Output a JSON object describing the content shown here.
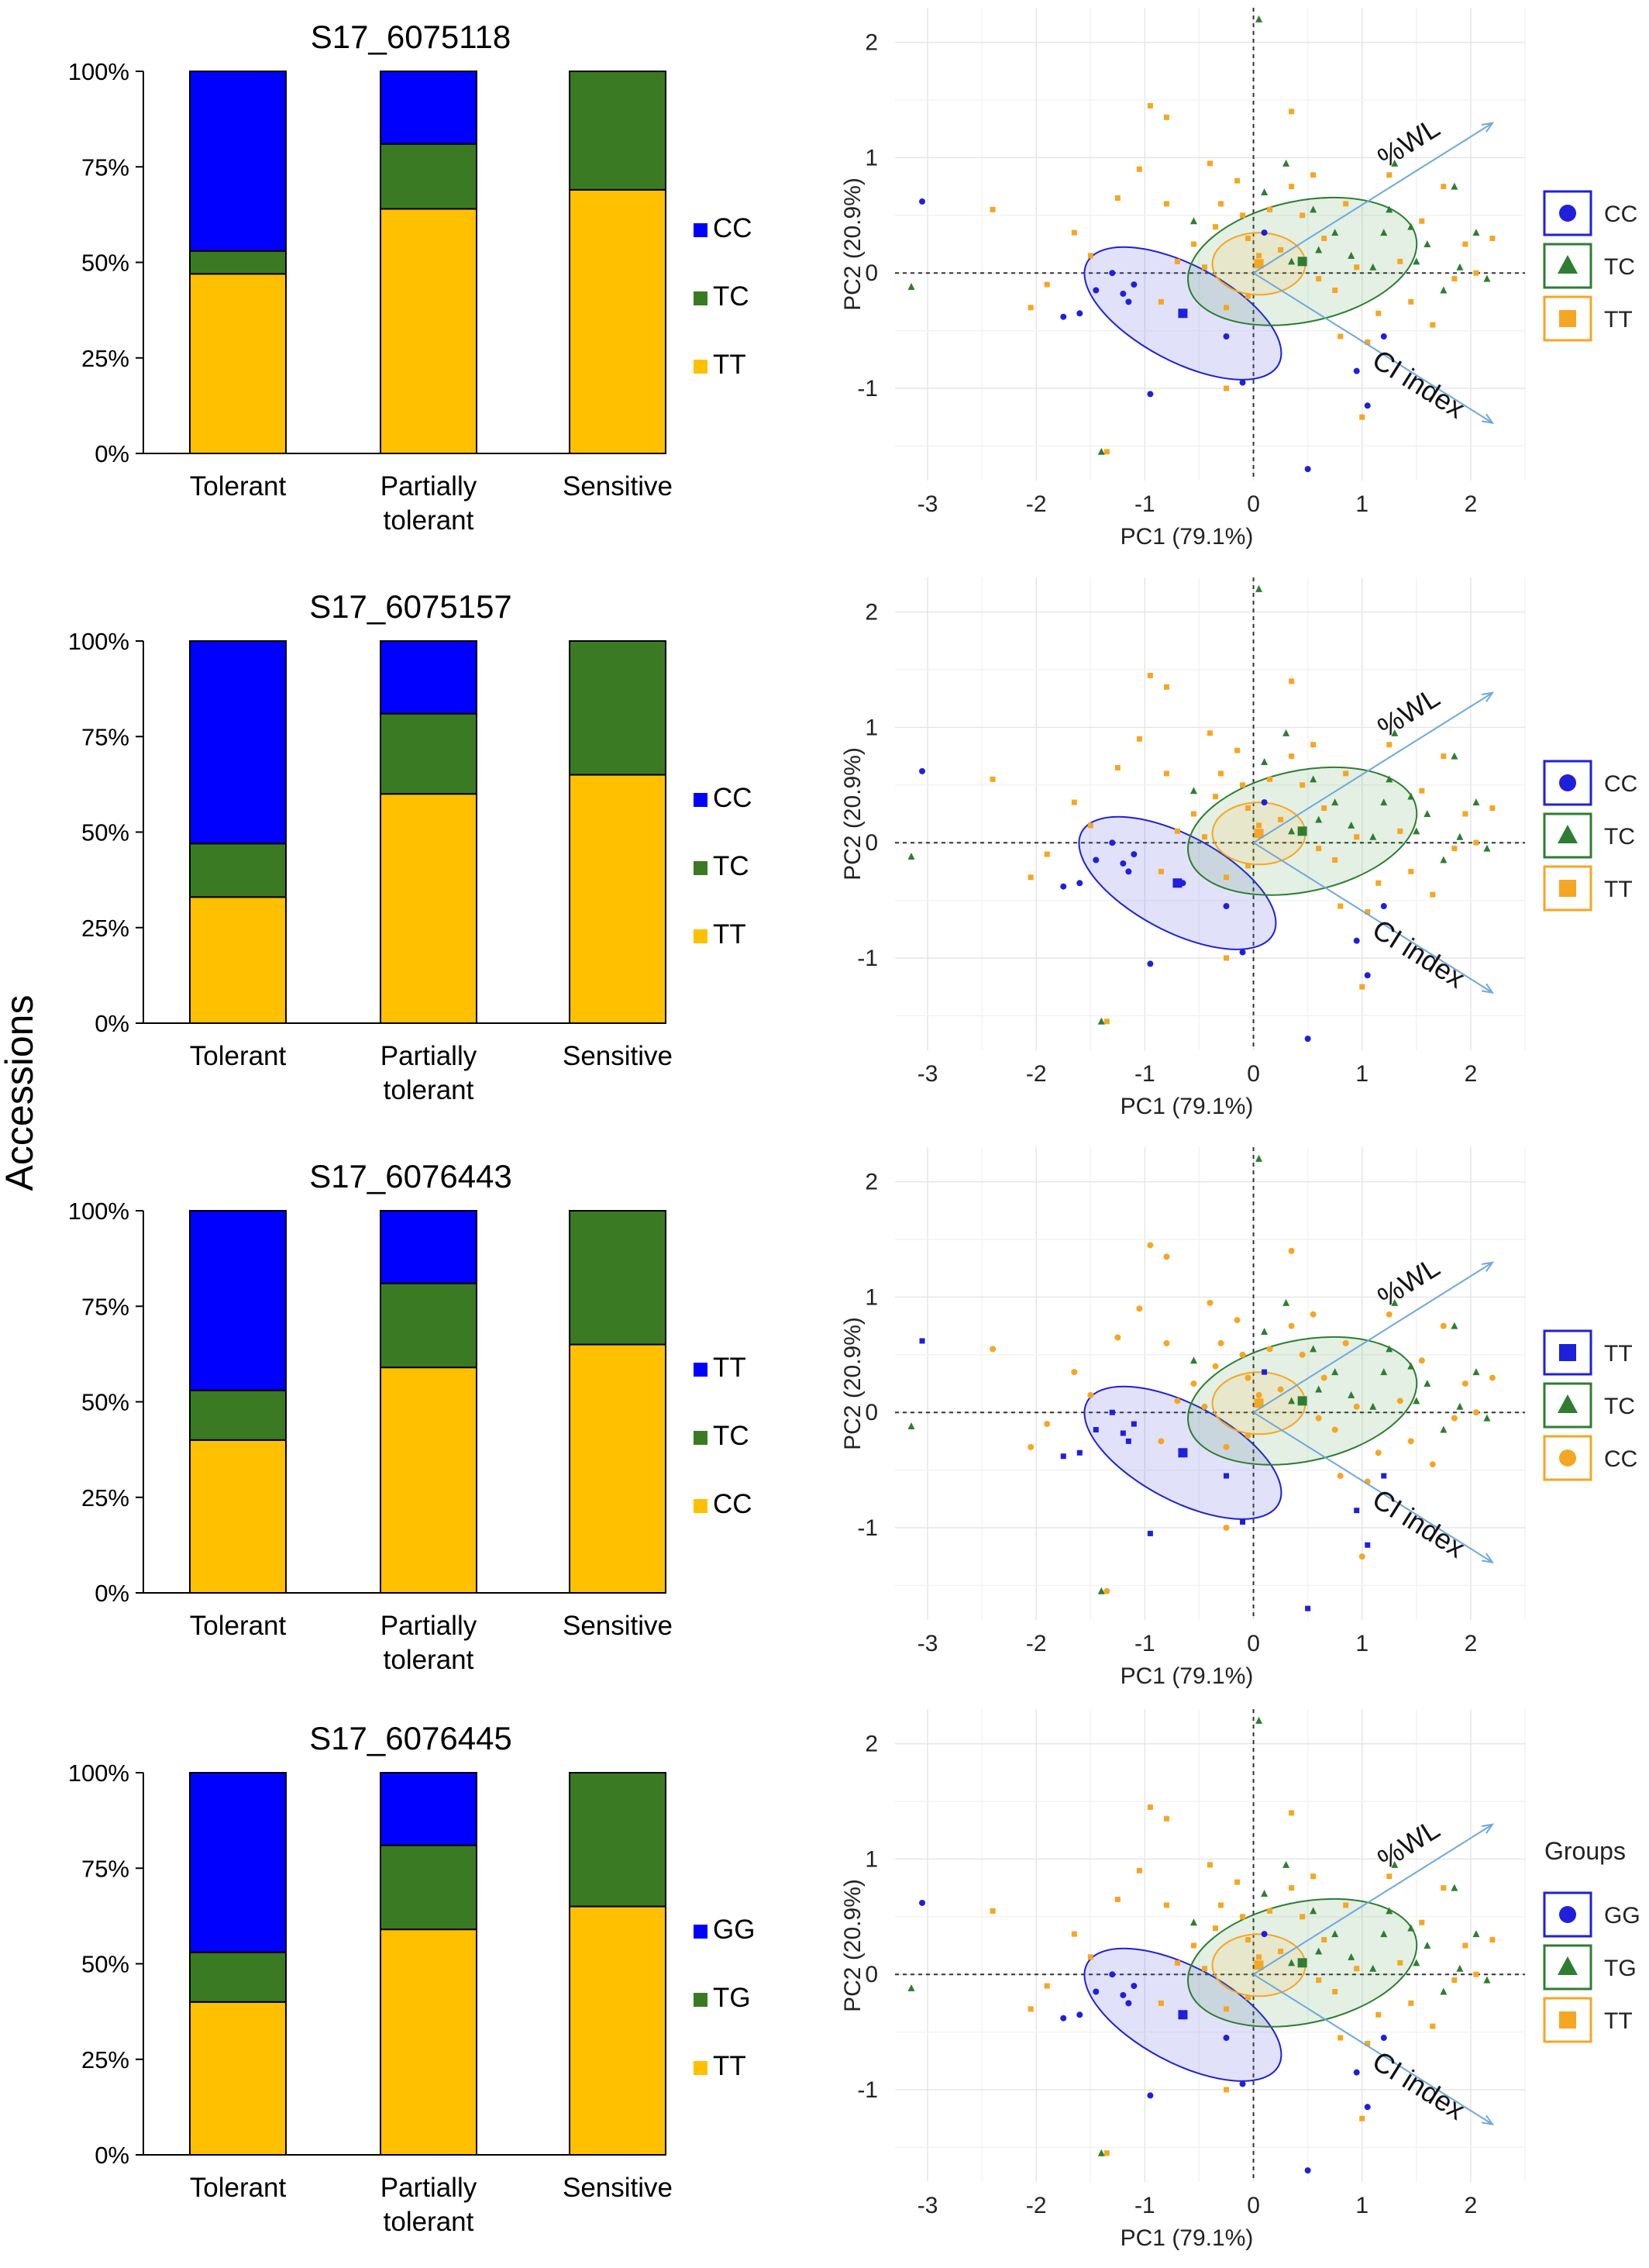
{
  "figure": {
    "ylabel": "Accessions"
  },
  "colors": {
    "blue": "#0000ff",
    "green": "#3a7a23",
    "orange": "#ffc000",
    "pca_blue": "#1f1fdc",
    "pca_green": "#2e7d32",
    "pca_orange": "#f5a623",
    "arrow": "#6fa8dc"
  },
  "chart_data": [
    {
      "type": "bar",
      "stacked": true,
      "title": "S17_6075118",
      "categories": [
        "Tolerant",
        "Partially tolerant",
        "Sensitive"
      ],
      "series": [
        {
          "name": "TT",
          "color": "orange",
          "values": [
            47,
            64,
            69
          ]
        },
        {
          "name": "TC",
          "color": "green",
          "values": [
            6,
            17,
            31
          ]
        },
        {
          "name": "CC",
          "color": "blue",
          "values": [
            47,
            19,
            0
          ]
        }
      ],
      "ylim": [
        0,
        100
      ],
      "yticks": [
        "0%",
        "25%",
        "50%",
        "75%",
        "100%"
      ],
      "legend_order": [
        "CC",
        "TC",
        "TT"
      ]
    },
    {
      "type": "scatter",
      "xlabel": "PC1 (79.1%)",
      "ylabel": "PC2 (20.9%)",
      "xlim": [
        -3.3,
        2.5
      ],
      "ylim": [
        -1.8,
        2.3
      ],
      "xticks": [
        "-3",
        "-2",
        "-1",
        "0",
        "1",
        "2"
      ],
      "yticks": [
        "-1",
        "0",
        "1",
        "2"
      ],
      "arrows": [
        {
          "label": "%WL",
          "x": 2.2,
          "y": 1.3
        },
        {
          "label": "CI index",
          "x": 2.2,
          "y": -1.3
        }
      ],
      "legend_title": "",
      "legend": [
        {
          "name": "CC",
          "color": "blue",
          "shape": "circle"
        },
        {
          "name": "TC",
          "color": "green",
          "shape": "triangle"
        },
        {
          "name": "TT",
          "color": "orange",
          "shape": "square"
        }
      ],
      "ellipses": [
        {
          "group": "CC",
          "cx": -0.65,
          "cy": -0.35
        },
        {
          "group": "TC",
          "cx": 0.45,
          "cy": 0.1
        },
        {
          "group": "TT",
          "cx": 0.05,
          "cy": 0.08
        }
      ]
    },
    {
      "type": "bar",
      "stacked": true,
      "title": "S17_6075157",
      "categories": [
        "Tolerant",
        "Partially tolerant",
        "Sensitive"
      ],
      "series": [
        {
          "name": "TT",
          "color": "orange",
          "values": [
            33,
            60,
            65
          ]
        },
        {
          "name": "TC",
          "color": "green",
          "values": [
            14,
            21,
            35
          ]
        },
        {
          "name": "CC",
          "color": "blue",
          "values": [
            53,
            19,
            0
          ]
        }
      ],
      "ylim": [
        0,
        100
      ],
      "yticks": [
        "0%",
        "25%",
        "50%",
        "75%",
        "100%"
      ],
      "legend_order": [
        "CC",
        "TC",
        "TT"
      ]
    },
    {
      "type": "scatter",
      "xlabel": "PC1 (79.1%)",
      "ylabel": "PC2 (20.9%)",
      "xlim": [
        -3.3,
        2.5
      ],
      "ylim": [
        -1.8,
        2.3
      ],
      "xticks": [
        "-3",
        "-2",
        "-1",
        "0",
        "1",
        "2"
      ],
      "yticks": [
        "-1",
        "0",
        "1",
        "2"
      ],
      "arrows": [
        {
          "label": "%WL",
          "x": 2.2,
          "y": 1.3
        },
        {
          "label": "CI index",
          "x": 2.2,
          "y": -1.3
        }
      ],
      "legend_title": "",
      "legend": [
        {
          "name": "CC",
          "color": "blue",
          "shape": "circle"
        },
        {
          "name": "TC",
          "color": "green",
          "shape": "triangle"
        },
        {
          "name": "TT",
          "color": "orange",
          "shape": "square"
        }
      ],
      "ellipses": [
        {
          "group": "CC",
          "cx": -0.7,
          "cy": -0.35
        },
        {
          "group": "TC",
          "cx": 0.45,
          "cy": 0.1
        },
        {
          "group": "TT",
          "cx": 0.05,
          "cy": 0.08
        }
      ]
    },
    {
      "type": "bar",
      "stacked": true,
      "title": "S17_6076443",
      "categories": [
        "Tolerant",
        "Partially tolerant",
        "Sensitive"
      ],
      "series": [
        {
          "name": "CC",
          "color": "orange",
          "values": [
            40,
            59,
            65
          ]
        },
        {
          "name": "TC",
          "color": "green",
          "values": [
            13,
            22,
            35
          ]
        },
        {
          "name": "TT",
          "color": "blue",
          "values": [
            47,
            19,
            0
          ]
        }
      ],
      "ylim": [
        0,
        100
      ],
      "yticks": [
        "0%",
        "25%",
        "50%",
        "75%",
        "100%"
      ],
      "legend_order": [
        "TT",
        "TC",
        "CC"
      ]
    },
    {
      "type": "scatter",
      "xlabel": "PC1 (79.1%)",
      "ylabel": "PC2 (20.9%)",
      "xlim": [
        -3.3,
        2.5
      ],
      "ylim": [
        -1.8,
        2.3
      ],
      "xticks": [
        "-3",
        "-2",
        "-1",
        "0",
        "1",
        "2"
      ],
      "yticks": [
        "-1",
        "0",
        "1",
        "2"
      ],
      "arrows": [
        {
          "label": "%WL",
          "x": 2.2,
          "y": 1.3
        },
        {
          "label": "CI index",
          "x": 2.2,
          "y": -1.3
        }
      ],
      "legend_title": "",
      "legend": [
        {
          "name": "TT",
          "color": "blue",
          "shape": "square"
        },
        {
          "name": "TC",
          "color": "green",
          "shape": "triangle"
        },
        {
          "name": "CC",
          "color": "orange",
          "shape": "circle"
        }
      ],
      "ellipses": [
        {
          "group": "TT",
          "cx": -0.65,
          "cy": -0.35
        },
        {
          "group": "TC",
          "cx": 0.45,
          "cy": 0.1
        },
        {
          "group": "CC",
          "cx": 0.05,
          "cy": 0.08
        }
      ]
    },
    {
      "type": "bar",
      "stacked": true,
      "title": "S17_6076445",
      "categories": [
        "Tolerant",
        "Partially tolerant",
        "Sensitive"
      ],
      "series": [
        {
          "name": "TT",
          "color": "orange",
          "values": [
            40,
            59,
            65
          ]
        },
        {
          "name": "TG",
          "color": "green",
          "values": [
            13,
            22,
            35
          ]
        },
        {
          "name": "GG",
          "color": "blue",
          "values": [
            47,
            19,
            0
          ]
        }
      ],
      "ylim": [
        0,
        100
      ],
      "yticks": [
        "0%",
        "25%",
        "50%",
        "75%",
        "100%"
      ],
      "legend_order": [
        "GG",
        "TG",
        "TT"
      ]
    },
    {
      "type": "scatter",
      "xlabel": "PC1 (79.1%)",
      "ylabel": "PC2 (20.9%)",
      "xlim": [
        -3.3,
        2.5
      ],
      "ylim": [
        -1.8,
        2.3
      ],
      "xticks": [
        "-3",
        "-2",
        "-1",
        "0",
        "1",
        "2"
      ],
      "yticks": [
        "-1",
        "0",
        "1",
        "2"
      ],
      "arrows": [
        {
          "label": "%WL",
          "x": 2.2,
          "y": 1.3
        },
        {
          "label": "CI index",
          "x": 2.2,
          "y": -1.3
        }
      ],
      "legend_title": "Groups",
      "legend": [
        {
          "name": "GG",
          "color": "blue",
          "shape": "circle"
        },
        {
          "name": "TG",
          "color": "green",
          "shape": "triangle"
        },
        {
          "name": "TT",
          "color": "orange",
          "shape": "square"
        }
      ],
      "ellipses": [
        {
          "group": "GG",
          "cx": -0.65,
          "cy": -0.35
        },
        {
          "group": "TG",
          "cx": 0.45,
          "cy": 0.1
        },
        {
          "group": "TT",
          "cx": 0.05,
          "cy": 0.08
        }
      ]
    }
  ],
  "scatter_points": {
    "blue": [
      [
        -3.05,
        0.62
      ],
      [
        -1.75,
        -0.38
      ],
      [
        -1.6,
        -0.35
      ],
      [
        -1.45,
        -0.15
      ],
      [
        -1.3,
        0.0
      ],
      [
        -1.1,
        -0.1
      ],
      [
        -0.95,
        -1.05
      ],
      [
        -0.65,
        -0.35
      ],
      [
        -0.25,
        -0.55
      ],
      [
        -0.1,
        -0.95
      ],
      [
        0.5,
        -1.7
      ],
      [
        0.95,
        -0.85
      ],
      [
        1.2,
        -0.55
      ],
      [
        1.05,
        -1.15
      ],
      [
        0.1,
        0.35
      ],
      [
        -1.2,
        -0.18
      ],
      [
        -1.15,
        -0.25
      ]
    ],
    "green": [
      [
        -3.15,
        -0.12
      ],
      [
        -1.4,
        -1.55
      ],
      [
        0.05,
        2.2
      ],
      [
        0.1,
        0.7
      ],
      [
        0.3,
        0.95
      ],
      [
        0.35,
        0.1
      ],
      [
        0.55,
        0.55
      ],
      [
        0.6,
        0.2
      ],
      [
        0.75,
        0.35
      ],
      [
        0.9,
        0.15
      ],
      [
        1.1,
        0.05
      ],
      [
        1.2,
        0.35
      ],
      [
        1.25,
        0.55
      ],
      [
        1.3,
        0.95
      ],
      [
        1.45,
        0.4
      ],
      [
        1.5,
        0.1
      ],
      [
        1.6,
        0.25
      ],
      [
        1.75,
        -0.15
      ],
      [
        1.9,
        0.05
      ],
      [
        2.05,
        0.35
      ],
      [
        1.85,
        0.75
      ],
      [
        2.15,
        -0.05
      ],
      [
        -0.55,
        0.45
      ]
    ],
    "orange": [
      [
        -2.4,
        0.55
      ],
      [
        -2.05,
        -0.3
      ],
      [
        -1.65,
        0.35
      ],
      [
        -1.5,
        0.15
      ],
      [
        -1.35,
        -1.55
      ],
      [
        -1.25,
        0.65
      ],
      [
        -1.05,
        0.9
      ],
      [
        -0.95,
        1.45
      ],
      [
        -0.8,
        1.35
      ],
      [
        -0.8,
        0.6
      ],
      [
        -0.7,
        0.1
      ],
      [
        -0.55,
        0.25
      ],
      [
        -0.45,
        0.05
      ],
      [
        -0.4,
        0.95
      ],
      [
        -0.35,
        0.4
      ],
      [
        -0.3,
        0.6
      ],
      [
        -0.25,
        -0.3
      ],
      [
        -0.15,
        0.8
      ],
      [
        -0.1,
        0.5
      ],
      [
        -0.05,
        -0.2
      ],
      [
        -0.05,
        0.3
      ],
      [
        0.15,
        0.55
      ],
      [
        0.25,
        0.2
      ],
      [
        0.35,
        0.75
      ],
      [
        0.45,
        0.5
      ],
      [
        0.55,
        0.85
      ],
      [
        0.65,
        0.3
      ],
      [
        0.75,
        -0.15
      ],
      [
        0.85,
        0.6
      ],
      [
        0.95,
        0.05
      ],
      [
        1.05,
        -0.6
      ],
      [
        1.15,
        -0.35
      ],
      [
        1.25,
        0.85
      ],
      [
        1.35,
        0.1
      ],
      [
        1.45,
        -0.25
      ],
      [
        1.55,
        0.45
      ],
      [
        1.65,
        -0.45
      ],
      [
        1.75,
        0.75
      ],
      [
        1.85,
        -0.05
      ],
      [
        1.95,
        0.25
      ],
      [
        2.05,
        0.0
      ],
      [
        2.2,
        0.3
      ],
      [
        0.35,
        1.4
      ],
      [
        0.8,
        -0.55
      ],
      [
        -0.85,
        -0.25
      ],
      [
        0.05,
        0.15
      ],
      [
        -0.25,
        -1.0
      ],
      [
        1.0,
        -1.25
      ],
      [
        -1.9,
        -0.1
      ],
      [
        0.6,
        -0.05
      ]
    ]
  }
}
